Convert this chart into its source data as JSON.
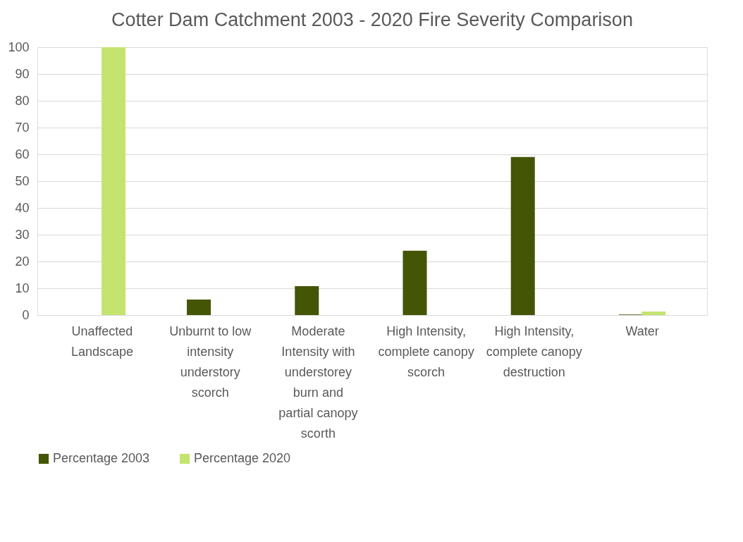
{
  "chart_data": {
    "type": "bar",
    "title": "Cotter Dam Catchment 2003 - 2020 Fire Severity Comparison",
    "categories": [
      "Unaffected Landscape",
      "Unburnt to low intensity understory scorch",
      "Moderate Intensity with understorey burn and partial canopy scorth",
      "High Intensity, complete canopy scorch",
      "High Intensity, complete canopy destruction",
      "Water"
    ],
    "series": [
      {
        "name": "Percentage 2003",
        "color": "#445506",
        "values": [
          0,
          5.8,
          10.8,
          24,
          59,
          0.2
        ]
      },
      {
        "name": "Percentage 2020",
        "color": "#c4e46f",
        "values": [
          100,
          0,
          0,
          0,
          0,
          1.3
        ]
      }
    ],
    "ylim": [
      0,
      100
    ],
    "yticks": [
      0,
      10,
      20,
      30,
      40,
      50,
      60,
      70,
      80,
      90,
      100
    ],
    "grid": "y",
    "legend": "bottom"
  }
}
